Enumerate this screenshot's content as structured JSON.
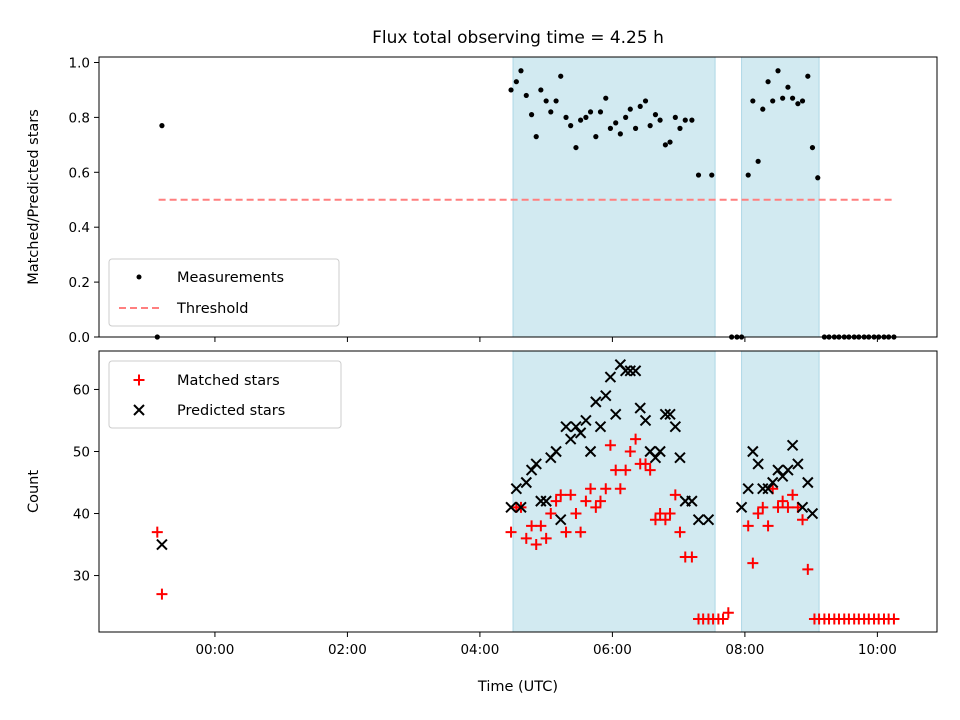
{
  "chart_data": {
    "type": "scatter",
    "title": "Flux total observing time = 4.25 h",
    "xlabel": "Time (UTC)",
    "x_units": "hours (UTC, relative to 00:00 of the plotted day; negative values fall on the previous day)",
    "x_ticks": [
      {
        "value": 0,
        "label": "00:00"
      },
      {
        "value": 2,
        "label": "02:00"
      },
      {
        "value": 4,
        "label": "04:00"
      },
      {
        "value": 6,
        "label": "06:00"
      },
      {
        "value": 8,
        "label": "08:00"
      },
      {
        "value": 10,
        "label": "10:00"
      }
    ],
    "xlim": [
      -1.75,
      10.9
    ],
    "shaded_intervals": [
      [
        4.5,
        7.55
      ],
      [
        7.95,
        9.12
      ]
    ],
    "shade_color": "#add8e6",
    "panels": [
      {
        "ylabel": "Matched/Predicted stars",
        "ylim": [
          0,
          1.02
        ],
        "yticks": [
          "0.0",
          "0.2",
          "0.4",
          "0.6",
          "0.8",
          "1.0"
        ],
        "yticks_values": [
          0,
          0.2,
          0.4,
          0.6,
          0.8,
          1.0
        ],
        "legend_position": "lower-left",
        "threshold": {
          "name": "Threshold",
          "value": 0.5,
          "x_range": [
            -0.85,
            10.25
          ],
          "color": "#ff7f7f",
          "style": "dashed"
        },
        "series": [
          {
            "name": "Measurements",
            "marker": "dot",
            "color": "#000000",
            "points": [
              [
                -0.87,
                0.0
              ],
              [
                -0.8,
                0.77
              ],
              [
                4.47,
                0.9
              ],
              [
                4.55,
                0.93
              ],
              [
                4.62,
                0.97
              ],
              [
                4.7,
                0.88
              ],
              [
                4.78,
                0.81
              ],
              [
                4.85,
                0.73
              ],
              [
                4.92,
                0.9
              ],
              [
                5.0,
                0.86
              ],
              [
                5.07,
                0.82
              ],
              [
                5.15,
                0.86
              ],
              [
                5.22,
                0.95
              ],
              [
                5.3,
                0.8
              ],
              [
                5.37,
                0.77
              ],
              [
                5.45,
                0.69
              ],
              [
                5.52,
                0.79
              ],
              [
                5.6,
                0.8
              ],
              [
                5.67,
                0.82
              ],
              [
                5.75,
                0.73
              ],
              [
                5.82,
                0.82
              ],
              [
                5.9,
                0.87
              ],
              [
                5.97,
                0.76
              ],
              [
                6.05,
                0.78
              ],
              [
                6.12,
                0.74
              ],
              [
                6.2,
                0.8
              ],
              [
                6.27,
                0.83
              ],
              [
                6.35,
                0.76
              ],
              [
                6.42,
                0.84
              ],
              [
                6.5,
                0.86
              ],
              [
                6.57,
                0.77
              ],
              [
                6.65,
                0.81
              ],
              [
                6.72,
                0.79
              ],
              [
                6.8,
                0.7
              ],
              [
                6.87,
                0.71
              ],
              [
                6.95,
                0.8
              ],
              [
                7.02,
                0.76
              ],
              [
                7.1,
                0.79
              ],
              [
                7.2,
                0.79
              ],
              [
                7.3,
                0.59
              ],
              [
                7.5,
                0.59
              ],
              [
                7.8,
                0.0
              ],
              [
                7.88,
                0.0
              ],
              [
                7.95,
                0.0
              ],
              [
                8.05,
                0.59
              ],
              [
                8.12,
                0.86
              ],
              [
                8.2,
                0.64
              ],
              [
                8.27,
                0.83
              ],
              [
                8.35,
                0.93
              ],
              [
                8.42,
                0.86
              ],
              [
                8.5,
                0.97
              ],
              [
                8.57,
                0.87
              ],
              [
                8.65,
                0.91
              ],
              [
                8.72,
                0.87
              ],
              [
                8.8,
                0.85
              ],
              [
                8.87,
                0.86
              ],
              [
                8.95,
                0.95
              ],
              [
                9.02,
                0.69
              ],
              [
                9.1,
                0.58
              ],
              [
                9.2,
                0.0
              ],
              [
                9.27,
                0.0
              ],
              [
                9.35,
                0.0
              ],
              [
                9.42,
                0.0
              ],
              [
                9.5,
                0.0
              ],
              [
                9.57,
                0.0
              ],
              [
                9.65,
                0.0
              ],
              [
                9.72,
                0.0
              ],
              [
                9.8,
                0.0
              ],
              [
                9.87,
                0.0
              ],
              [
                9.95,
                0.0
              ],
              [
                10.02,
                0.0
              ],
              [
                10.1,
                0.0
              ],
              [
                10.17,
                0.0
              ],
              [
                10.25,
                0.0
              ]
            ]
          }
        ]
      },
      {
        "ylabel": "Count",
        "ylim": [
          20.9,
          66.2
        ],
        "yticks": [
          "30",
          "40",
          "50",
          "60"
        ],
        "yticks_values": [
          30,
          40,
          50,
          60
        ],
        "legend_position": "upper-left",
        "series": [
          {
            "name": "Matched stars",
            "marker": "plus",
            "color": "#ff0000",
            "points": [
              [
                -0.87,
                37
              ],
              [
                -0.8,
                27
              ],
              [
                4.47,
                37
              ],
              [
                4.55,
                41
              ],
              [
                4.62,
                41
              ],
              [
                4.7,
                36
              ],
              [
                4.78,
                38
              ],
              [
                4.85,
                35
              ],
              [
                4.92,
                38
              ],
              [
                5.0,
                36
              ],
              [
                5.07,
                40
              ],
              [
                5.15,
                42
              ],
              [
                5.22,
                43
              ],
              [
                5.3,
                37
              ],
              [
                5.37,
                43
              ],
              [
                5.45,
                40
              ],
              [
                5.52,
                37
              ],
              [
                5.6,
                42
              ],
              [
                5.67,
                44
              ],
              [
                5.75,
                41
              ],
              [
                5.82,
                42
              ],
              [
                5.9,
                44
              ],
              [
                5.97,
                51
              ],
              [
                6.05,
                47
              ],
              [
                6.12,
                44
              ],
              [
                6.2,
                47
              ],
              [
                6.27,
                50
              ],
              [
                6.35,
                52
              ],
              [
                6.42,
                48
              ],
              [
                6.5,
                48
              ],
              [
                6.57,
                47
              ],
              [
                6.65,
                39
              ],
              [
                6.72,
                40
              ],
              [
                6.8,
                39
              ],
              [
                6.87,
                40
              ],
              [
                6.95,
                43
              ],
              [
                7.02,
                37
              ],
              [
                7.1,
                33
              ],
              [
                7.2,
                33
              ],
              [
                7.3,
                23
              ],
              [
                7.37,
                23
              ],
              [
                7.45,
                23
              ],
              [
                7.52,
                23
              ],
              [
                7.6,
                23
              ],
              [
                7.67,
                23
              ],
              [
                7.75,
                24
              ],
              [
                8.05,
                38
              ],
              [
                8.12,
                32
              ],
              [
                8.2,
                40
              ],
              [
                8.27,
                41
              ],
              [
                8.35,
                38
              ],
              [
                8.42,
                44
              ],
              [
                8.5,
                41
              ],
              [
                8.57,
                42
              ],
              [
                8.65,
                41
              ],
              [
                8.72,
                43
              ],
              [
                8.8,
                41
              ],
              [
                8.87,
                39
              ],
              [
                8.95,
                31
              ],
              [
                9.05,
                23
              ],
              [
                9.12,
                23
              ],
              [
                9.2,
                23
              ],
              [
                9.27,
                23
              ],
              [
                9.35,
                23
              ],
              [
                9.42,
                23
              ],
              [
                9.5,
                23
              ],
              [
                9.57,
                23
              ],
              [
                9.65,
                23
              ],
              [
                9.72,
                23
              ],
              [
                9.8,
                23
              ],
              [
                9.87,
                23
              ],
              [
                9.95,
                23
              ],
              [
                10.02,
                23
              ],
              [
                10.1,
                23
              ],
              [
                10.17,
                23
              ],
              [
                10.25,
                23
              ]
            ]
          },
          {
            "name": "Predicted stars",
            "marker": "x",
            "color": "#000000",
            "points": [
              [
                -0.8,
                35
              ],
              [
                4.47,
                41
              ],
              [
                4.55,
                44
              ],
              [
                4.62,
                41
              ],
              [
                4.7,
                45
              ],
              [
                4.78,
                47
              ],
              [
                4.85,
                48
              ],
              [
                4.92,
                42
              ],
              [
                5.0,
                42
              ],
              [
                5.07,
                49
              ],
              [
                5.15,
                50
              ],
              [
                5.22,
                39
              ],
              [
                5.3,
                54
              ],
              [
                5.37,
                52
              ],
              [
                5.45,
                54
              ],
              [
                5.52,
                53
              ],
              [
                5.6,
                55
              ],
              [
                5.67,
                50
              ],
              [
                5.75,
                58
              ],
              [
                5.82,
                54
              ],
              [
                5.9,
                59
              ],
              [
                5.97,
                62
              ],
              [
                6.05,
                56
              ],
              [
                6.12,
                64
              ],
              [
                6.2,
                63
              ],
              [
                6.27,
                63
              ],
              [
                6.35,
                63
              ],
              [
                6.42,
                57
              ],
              [
                6.5,
                55
              ],
              [
                6.57,
                50
              ],
              [
                6.65,
                49
              ],
              [
                6.72,
                50
              ],
              [
                6.8,
                56
              ],
              [
                6.87,
                56
              ],
              [
                6.95,
                54
              ],
              [
                7.02,
                49
              ],
              [
                7.1,
                42
              ],
              [
                7.2,
                42
              ],
              [
                7.3,
                39
              ],
              [
                7.45,
                39
              ],
              [
                7.95,
                41
              ],
              [
                8.05,
                44
              ],
              [
                8.12,
                50
              ],
              [
                8.2,
                48
              ],
              [
                8.27,
                44
              ],
              [
                8.35,
                44
              ],
              [
                8.42,
                45
              ],
              [
                8.5,
                47
              ],
              [
                8.57,
                46
              ],
              [
                8.65,
                47
              ],
              [
                8.72,
                51
              ],
              [
                8.8,
                48
              ],
              [
                8.87,
                41
              ],
              [
                8.95,
                45
              ],
              [
                9.02,
                40
              ]
            ]
          }
        ]
      }
    ]
  }
}
